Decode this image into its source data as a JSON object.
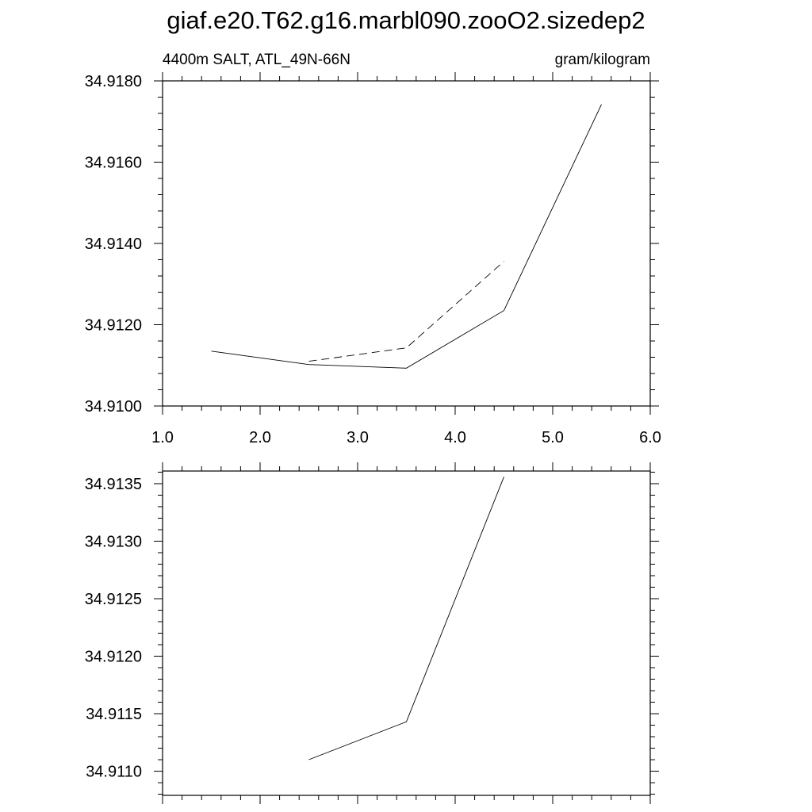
{
  "title": "giaf.e20.T62.g16.marbl090.zooO2.sizedep2",
  "subtitle_left": "4400m SALT, ATL_49N-66N",
  "subtitle_right": "gram/kilogram",
  "chart_data": [
    {
      "type": "line",
      "title": "",
      "xlabel": "",
      "ylabel": "",
      "xlim": [
        1.0,
        6.0
      ],
      "ylim": [
        34.91,
        34.918
      ],
      "x_ticks": [
        "1.0",
        "2.0",
        "3.0",
        "4.0",
        "5.0",
        "6.0"
      ],
      "y_ticks": [
        "34.9100",
        "34.9120",
        "34.9140",
        "34.9160",
        "34.9180"
      ],
      "grid": false,
      "series": [
        {
          "style": "solid",
          "x": [
            1.5,
            2.5,
            3.5,
            4.5,
            5.5
          ],
          "values": [
            34.91135,
            34.91102,
            34.91093,
            34.91235,
            34.91742
          ]
        },
        {
          "style": "dashed",
          "x": [
            2.5,
            3.5,
            4.5
          ],
          "values": [
            34.9111,
            34.91143,
            34.91356
          ]
        }
      ]
    },
    {
      "type": "line",
      "title": "",
      "xlabel": "",
      "ylabel": "",
      "xlim": [
        1.0,
        6.0
      ],
      "ylim": [
        34.91079,
        34.91361
      ],
      "x_ticks": [],
      "y_ticks": [
        "34.9110",
        "34.9115",
        "34.9120",
        "34.9125",
        "34.9130",
        "34.9135"
      ],
      "grid": false,
      "series": [
        {
          "style": "solid",
          "x": [
            2.5,
            3.5,
            4.5
          ],
          "values": [
            34.9111,
            34.91143,
            34.91356
          ]
        }
      ]
    }
  ]
}
